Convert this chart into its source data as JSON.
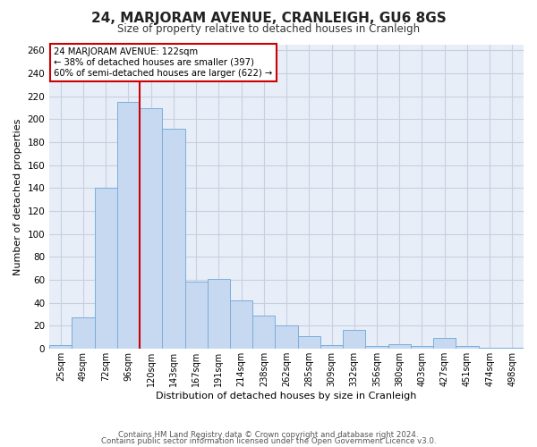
{
  "title": "24, MARJORAM AVENUE, CRANLEIGH, GU6 8GS",
  "subtitle": "Size of property relative to detached houses in Cranleigh",
  "xlabel": "Distribution of detached houses by size in Cranleigh",
  "ylabel": "Number of detached properties",
  "footer_line1": "Contains HM Land Registry data © Crown copyright and database right 2024.",
  "footer_line2": "Contains public sector information licensed under the Open Government Licence v3.0.",
  "bin_labels": [
    "25sqm",
    "49sqm",
    "72sqm",
    "96sqm",
    "120sqm",
    "143sqm",
    "167sqm",
    "191sqm",
    "214sqm",
    "238sqm",
    "262sqm",
    "285sqm",
    "309sqm",
    "332sqm",
    "356sqm",
    "380sqm",
    "403sqm",
    "427sqm",
    "451sqm",
    "474sqm",
    "498sqm"
  ],
  "bar_heights": [
    3,
    27,
    140,
    215,
    210,
    192,
    58,
    61,
    42,
    29,
    20,
    11,
    3,
    16,
    2,
    4,
    2,
    9,
    2,
    1,
    1
  ],
  "bar_color": "#c6d9f0",
  "bar_edge_color": "#7aaedb",
  "property_line_bin_index": 4,
  "property_line_color": "#cc0000",
  "annotation_title": "24 MARJORAM AVENUE: 122sqm",
  "annotation_line1": "← 38% of detached houses are smaller (397)",
  "annotation_line2": "60% of semi-detached houses are larger (622) →",
  "annotation_box_color": "#cc0000",
  "ylim": [
    0,
    265
  ],
  "yticks": [
    0,
    20,
    40,
    60,
    80,
    100,
    120,
    140,
    160,
    180,
    200,
    220,
    240,
    260
  ],
  "background_color": "#ffffff",
  "grid_color": "#c8cfe0",
  "plot_bg_color": "#e8eef8"
}
